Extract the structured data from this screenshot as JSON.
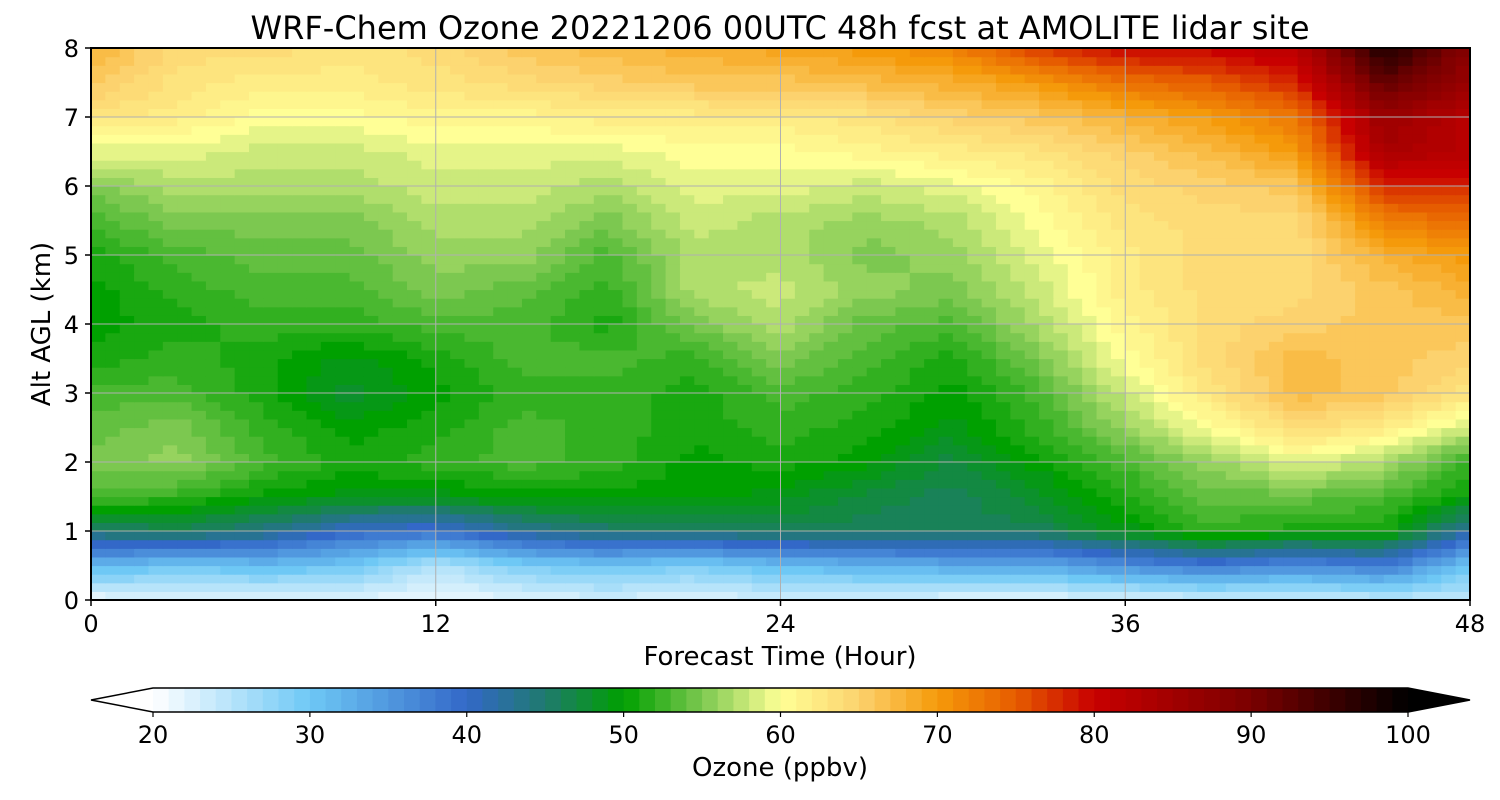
{
  "chart_data": {
    "type": "heatmap",
    "title": "WRF-Chem Ozone  20221206 00UTC 48h fcst at AMOLITE lidar site",
    "xlabel": "Forecast Time (Hour)",
    "ylabel": "Alt AGL (km)",
    "xlim": [
      0,
      48
    ],
    "ylim": [
      0,
      8
    ],
    "x_ticks": [
      0,
      12,
      24,
      36,
      48
    ],
    "y_ticks": [
      0,
      1,
      2,
      3,
      4,
      5,
      6,
      7,
      8
    ],
    "grid": true,
    "colorbar": {
      "label": "Ozone  (ppbv)",
      "min": 20,
      "max": 100,
      "ticks": [
        20,
        30,
        40,
        50,
        60,
        70,
        80,
        90,
        100
      ],
      "extend": "both",
      "stops": [
        {
          "value": 20,
          "color": "#ffffff"
        },
        {
          "value": 30,
          "color": "#6ec8f5"
        },
        {
          "value": 40,
          "color": "#3368c8"
        },
        {
          "value": 45,
          "color": "#1f7a6e"
        },
        {
          "value": 50,
          "color": "#00a000"
        },
        {
          "value": 55,
          "color": "#7cc850"
        },
        {
          "value": 60,
          "color": "#ffff96"
        },
        {
          "value": 65,
          "color": "#fcd26e"
        },
        {
          "value": 70,
          "color": "#f59a0a"
        },
        {
          "value": 75,
          "color": "#e65c00"
        },
        {
          "value": 80,
          "color": "#c80000"
        },
        {
          "value": 90,
          "color": "#7a0000"
        },
        {
          "value": 100,
          "color": "#000000"
        }
      ]
    },
    "x": [
      0,
      3,
      6,
      9,
      12,
      15,
      18,
      21,
      24,
      27,
      30,
      33,
      36,
      39,
      42,
      45,
      48
    ],
    "y": [
      0,
      0.5,
      1,
      1.5,
      2,
      2.5,
      3,
      3.5,
      4,
      4.5,
      5,
      5.5,
      6,
      6.5,
      7,
      7.5,
      8
    ],
    "z": [
      [
        21,
        22,
        22,
        22,
        21,
        22,
        23,
        22,
        23,
        23,
        22,
        22,
        22,
        23,
        23,
        24,
        24
      ],
      [
        32,
        30,
        31,
        30,
        25,
        29,
        30,
        29,
        31,
        32,
        33,
        33,
        36,
        38,
        36,
        38,
        30
      ],
      [
        45,
        46,
        44,
        40,
        39,
        43,
        45,
        45,
        46,
        46,
        46,
        46,
        49,
        52,
        51,
        51,
        42
      ],
      [
        53,
        52,
        50,
        49,
        49,
        50,
        50,
        50,
        49,
        47,
        46,
        48,
        51,
        54,
        54,
        53,
        50
      ],
      [
        55,
        56,
        53,
        51,
        52,
        53,
        52,
        50,
        51,
        50,
        47,
        50,
        53,
        56,
        59,
        57,
        52
      ],
      [
        54,
        55,
        52,
        50,
        51,
        53,
        52,
        51,
        52,
        51,
        49,
        52,
        56,
        60,
        64,
        62,
        58
      ],
      [
        53,
        53,
        51,
        48,
        50,
        52,
        52,
        51,
        53,
        52,
        50,
        53,
        58,
        63,
        67,
        66,
        63
      ],
      [
        51,
        52,
        51,
        49,
        51,
        53,
        53,
        52,
        55,
        53,
        51,
        55,
        60,
        64,
        67,
        66,
        65
      ],
      [
        50,
        51,
        52,
        52,
        53,
        53,
        51,
        55,
        57,
        54,
        53,
        57,
        61,
        64,
        65,
        66,
        66
      ],
      [
        50,
        52,
        53,
        53,
        55,
        54,
        52,
        57,
        58,
        56,
        55,
        58,
        62,
        64,
        64,
        66,
        68
      ],
      [
        51,
        53,
        54,
        54,
        56,
        56,
        53,
        57,
        57,
        55,
        56,
        59,
        62,
        64,
        64,
        68,
        70
      ],
      [
        53,
        55,
        55,
        55,
        57,
        57,
        55,
        58,
        57,
        56,
        57,
        60,
        63,
        64,
        64,
        72,
        74
      ],
      [
        55,
        57,
        57,
        57,
        58,
        58,
        57,
        59,
        59,
        58,
        59,
        61,
        64,
        65,
        66,
        78,
        78
      ],
      [
        59,
        59,
        58,
        58,
        59,
        59,
        59,
        60,
        60,
        61,
        62,
        63,
        65,
        67,
        70,
        84,
        82
      ],
      [
        63,
        62,
        60,
        60,
        61,
        61,
        62,
        62,
        62,
        63,
        65,
        66,
        68,
        70,
        73,
        86,
        82
      ],
      [
        66,
        63,
        62,
        62,
        63,
        64,
        65,
        66,
        66,
        67,
        68,
        70,
        73,
        75,
        78,
        92,
        86
      ],
      [
        68,
        64,
        64,
        63,
        64,
        66,
        67,
        68,
        69,
        70,
        72,
        77,
        80,
        80,
        82,
        98,
        88
      ]
    ]
  }
}
